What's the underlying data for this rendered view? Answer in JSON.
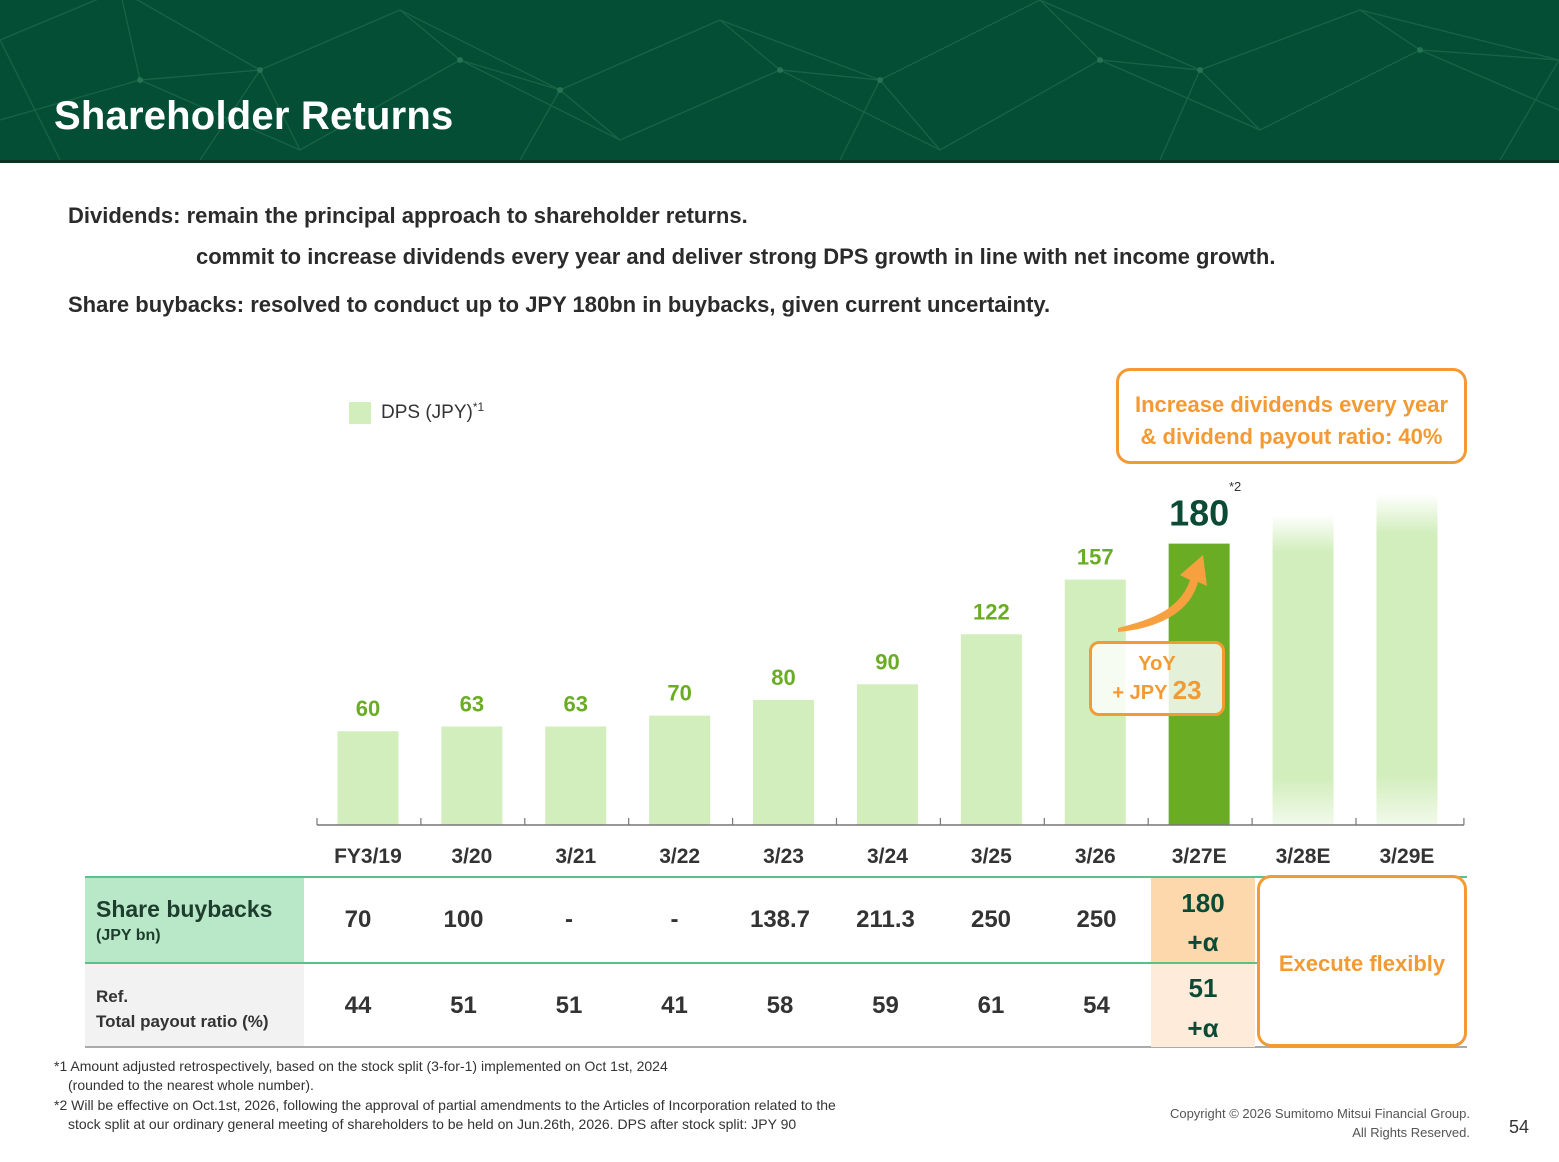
{
  "header": {
    "title": "Shareholder Returns",
    "bg_color": "#034e34"
  },
  "intro": {
    "line1": "Dividends: remain the principal approach to shareholder returns.",
    "line2": "commit to increase dividends every year and deliver strong DPS growth in line with net income growth.",
    "line3": "Share buybacks: resolved to conduct up to JPY 180bn in buybacks, given current uncertainty."
  },
  "legend": {
    "label": "DPS (JPY)",
    "sup": "*1",
    "color": "#d2eebc"
  },
  "callout": {
    "line1": "Increase dividends every year",
    "line2": "& dividend payout ratio: 40%",
    "color": "#f39a33"
  },
  "yoy": {
    "line1": "YoY",
    "line2_prefix": "+ JPY ",
    "line2_value": "23"
  },
  "note_star": "*2",
  "chart_data": {
    "type": "bar",
    "categories": [
      "FY3/19",
      "3/20",
      "3/21",
      "3/22",
      "3/23",
      "3/24",
      "3/25",
      "3/26",
      "3/27E",
      "3/28E",
      "3/29E"
    ],
    "series": [
      {
        "name": "DPS (JPY)",
        "values": [
          60,
          63,
          63,
          70,
          80,
          90,
          122,
          157,
          180,
          null,
          null
        ]
      }
    ],
    "labels": [
      "60",
      "63",
      "63",
      "70",
      "80",
      "90",
      "122",
      "157",
      "180",
      "",
      ""
    ],
    "highlight_category": "3/27E",
    "projected_categories": [
      "3/28E",
      "3/29E"
    ],
    "ylim": [
      0,
      200
    ],
    "colors": {
      "bar": "#d2eebc",
      "highlight": "#6aad25",
      "label": "#6aad25",
      "highlight_label": "#0b4a35"
    }
  },
  "table": {
    "rows": [
      {
        "label": "Share buybacks",
        "sublabel": "(JPY bn)",
        "values": [
          "70",
          "100",
          "-",
          "-",
          "138.7",
          "211.3",
          "250",
          "250"
        ],
        "estimate": [
          "180",
          "+α"
        ]
      },
      {
        "label": "Ref.",
        "sublabel": "Total payout ratio (%)",
        "values": [
          "44",
          "51",
          "51",
          "41",
          "58",
          "59",
          "61",
          "54"
        ],
        "estimate": [
          "51",
          "+α"
        ]
      }
    ],
    "execute_label": "Execute flexibly"
  },
  "footnotes": {
    "f1a": "*1 Amount adjusted retrospectively, based on the stock split (3-for-1) implemented on Oct 1st, 2024",
    "f1b": "(rounded to the nearest whole number).",
    "f2a": "*2 Will be effective on Oct.1st, 2026, following the approval of partial amendments to the Articles of Incorporation related to the",
    "f2b": "stock split at our ordinary general meeting of shareholders to be held on Jun.26th, 2026. DPS after stock split: JPY 90"
  },
  "copyright": {
    "line1": "Copyright © 2026 Sumitomo Mitsui Financial Group.",
    "line2": "All Rights Reserved."
  },
  "page_number": "54"
}
